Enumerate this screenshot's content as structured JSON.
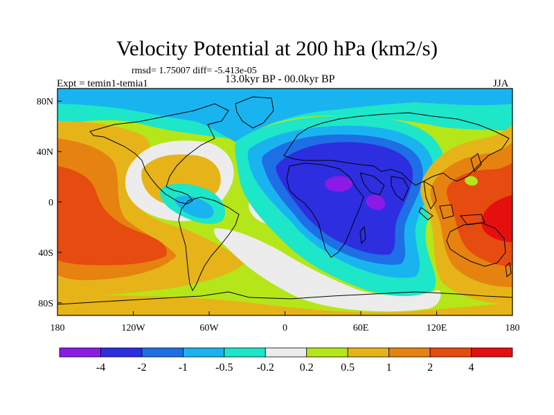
{
  "header": {
    "title": "Velocity Potential at 200 hPa (km2/s)",
    "stats": "rmsd= 1.75007 diff= -5.413e-05",
    "period": "13.0kyr BP - 00.0kyr BP",
    "experiment": "Expt = temin1-temia1",
    "season": "JJA"
  },
  "map": {
    "projection": "cylindrical-equidistant",
    "lon_range": [
      -180,
      180
    ],
    "lat_range": [
      -90,
      90
    ],
    "x_ticks": [
      {
        "lon": -180,
        "label": "180"
      },
      {
        "lon": -120,
        "label": "120W"
      },
      {
        "lon": -60,
        "label": "60W"
      },
      {
        "lon": 0,
        "label": "0"
      },
      {
        "lon": 60,
        "label": "60E"
      },
      {
        "lon": 120,
        "label": "120E"
      },
      {
        "lon": 180,
        "label": "180"
      }
    ],
    "y_ticks": [
      {
        "lat": 80,
        "label": "80N"
      },
      {
        "lat": 40,
        "label": "40N"
      },
      {
        "lat": 0,
        "label": "0"
      },
      {
        "lat": -40,
        "label": "40S"
      },
      {
        "lat": -80,
        "label": "80S"
      }
    ]
  },
  "colorbar": {
    "colors": [
      "#8c1ae6",
      "#2d2ee0",
      "#1e6ee6",
      "#19b4f0",
      "#1ee6c8",
      "#ececec",
      "#b4e619",
      "#e6b419",
      "#e6820f",
      "#e64b0f",
      "#e60f0f"
    ],
    "labels": [
      "-4",
      "-2",
      "-1",
      "-0.5",
      "-0.2",
      "0.2",
      "0.5",
      "1",
      "2",
      "4"
    ]
  }
}
